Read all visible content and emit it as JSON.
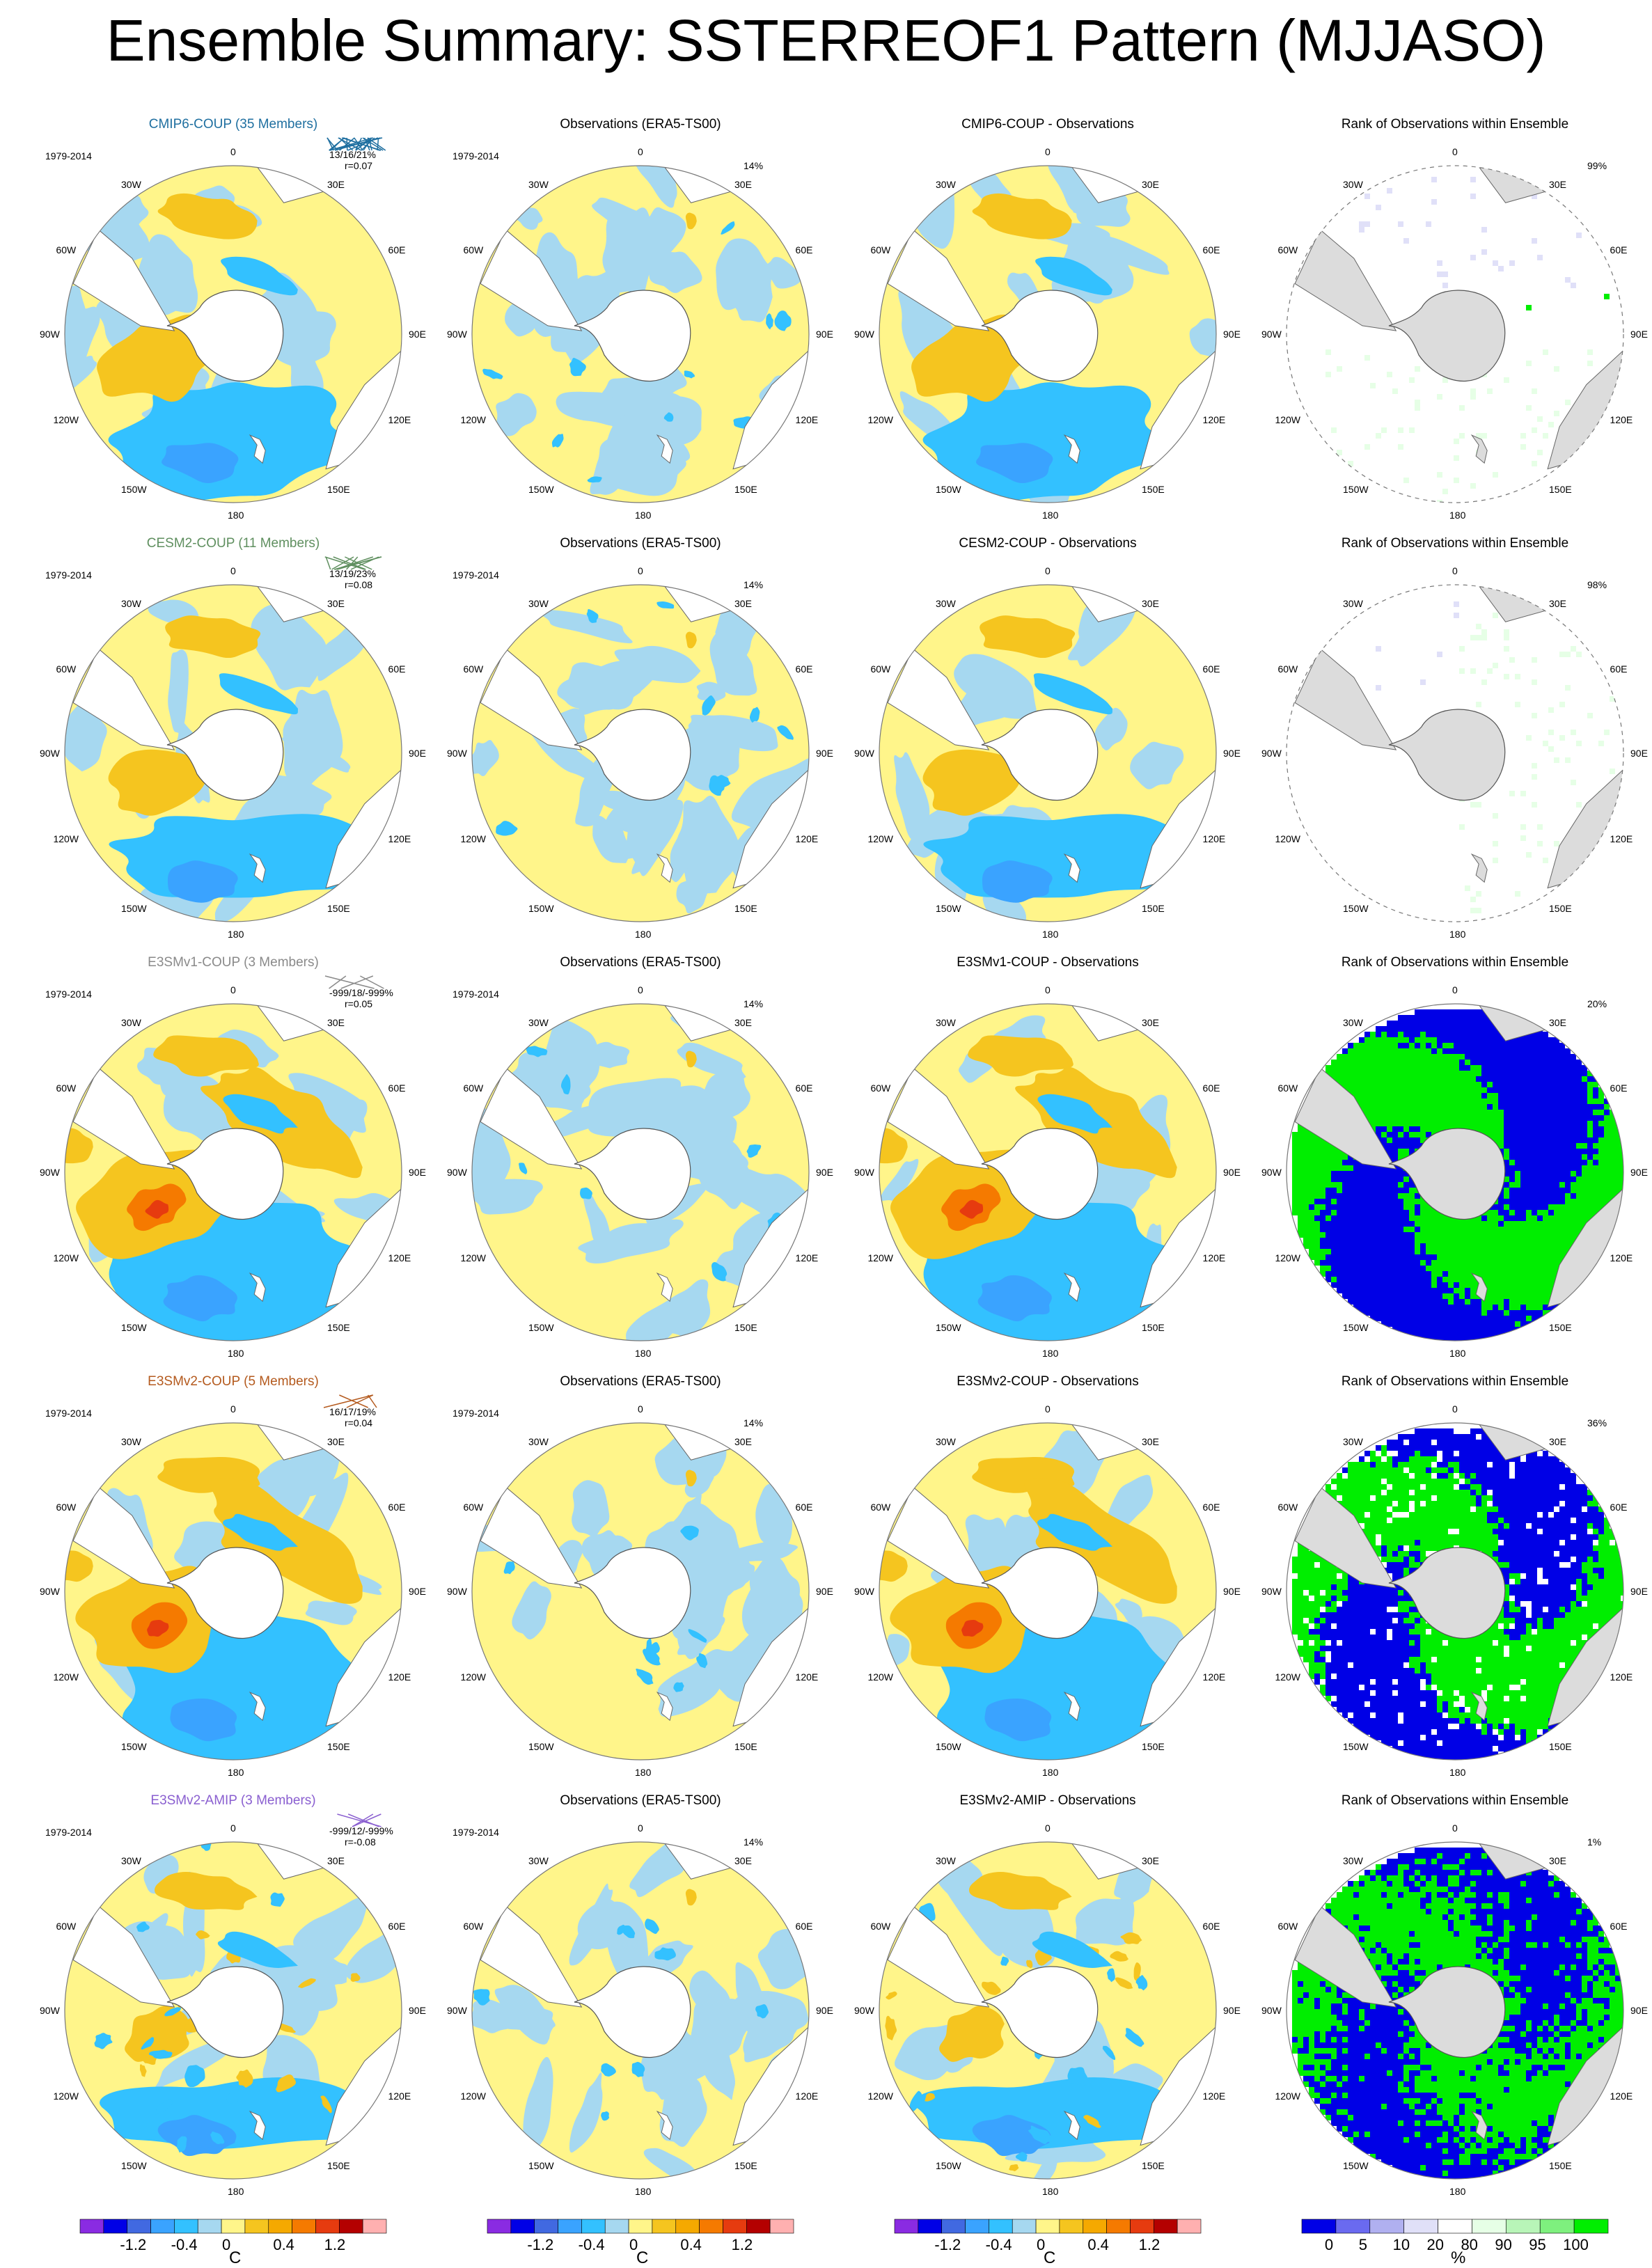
{
  "title": "Ensemble Summary: SSTERREOF1 Pattern (MJJASO)",
  "colors": {
    "diverging_palette": [
      "#8a2be2",
      "#0000e6",
      "#4169e1",
      "#3aa3ff",
      "#33c1ff",
      "#a6d8f0",
      "#fff58a",
      "#f5c51f",
      "#f5a900",
      "#f57a00",
      "#e63b0f",
      "#b40000",
      "#ffb0b0"
    ],
    "rank_palette": [
      "#0000e6",
      "#6a6af0",
      "#b0b0f0",
      "#e0e0f8",
      "#ffffff",
      "#e6ffe6",
      "#b8f5b8",
      "#7ef07e",
      "#00ee00"
    ],
    "land": "#dcdcdc",
    "cmip6_title": "#1f6fa0",
    "cesm2_title": "#5f8f5f",
    "e3smv1_title": "#8a8a8a",
    "e3smv2_title": "#b45a1e",
    "e3smv2amip_title": "#8a5fd0"
  },
  "rows": [
    {
      "model_title": "CMIP6-COUP (35 Members)",
      "title_color": "#1f6fa0",
      "period": "1979-2014",
      "stats": "13/16/21%",
      "corr": "r=0.07",
      "obs_title": "Observations (ERA5-TS00)",
      "obs_pct": "14%",
      "diff_title": "CMIP6-COUP - Observations",
      "rank_title": "Rank of Observations within Ensemble",
      "rank_pct": "99%",
      "rank_mode": "sparse"
    },
    {
      "model_title": "CESM2-COUP (11 Members)",
      "title_color": "#5f8f5f",
      "period": "1979-2014",
      "stats": "13/19/23%",
      "corr": "r=0.08",
      "obs_title": "Observations (ERA5-TS00)",
      "obs_pct": "14%",
      "diff_title": "CESM2-COUP - Observations",
      "rank_title": "Rank of Observations within Ensemble",
      "rank_pct": "98%",
      "rank_mode": "sparse2"
    },
    {
      "model_title": "E3SMv1-COUP (3 Members)",
      "title_color": "#8a8a8a",
      "period": "1979-2014",
      "stats": "-999/18/-999%",
      "corr": "r=0.05",
      "obs_title": "Observations (ERA5-TS00)",
      "obs_pct": "14%",
      "diff_title": "E3SMv1-COUP - Observations",
      "rank_title": "Rank of Observations within Ensemble",
      "rank_pct": "20%",
      "rank_mode": "dense"
    },
    {
      "model_title": "E3SMv2-COUP (5 Members)",
      "title_color": "#b45a1e",
      "period": "1979-2014",
      "stats": "16/17/19%",
      "corr": "r=0.04",
      "obs_title": "Observations (ERA5-TS00)",
      "obs_pct": "14%",
      "diff_title": "E3SMv2-COUP - Observations",
      "rank_title": "Rank of Observations within Ensemble",
      "rank_pct": "36%",
      "rank_mode": "dense2"
    },
    {
      "model_title": "E3SMv2-AMIP (3 Members)",
      "title_color": "#8a5fd0",
      "period": "1979-2014",
      "stats": "-999/12/-999%",
      "corr": "r=-0.08",
      "obs_title": "Observations (ERA5-TS00)",
      "obs_pct": "14%",
      "diff_title": "E3SMv2-AMIP - Observations",
      "rank_title": "Rank of Observations within Ensemble",
      "rank_pct": "1%",
      "rank_mode": "speckle"
    }
  ],
  "lon_labels": {
    "top": "0",
    "bottom": "180",
    "l1": "30W",
    "l2": "60W",
    "l3": "90W",
    "l4": "120W",
    "l5": "150W",
    "r1": "30E",
    "r2": "60E",
    "r3": "90E",
    "r4": "120E",
    "r5": "150E"
  },
  "chart_data": {
    "type": "heatmap",
    "title": "Ensemble Summary: SSTERREOF1 Pattern (MJJASO)",
    "projection": "south polar stereographic",
    "colorbar_anomaly": {
      "tick_labels": [
        "-1.2",
        "-0.4",
        "0",
        "0.4",
        "1.2"
      ],
      "unit": "C"
    },
    "colorbar_rank": {
      "tick_labels": [
        "0",
        "5",
        "10",
        "20",
        "80",
        "90",
        "95",
        "100"
      ],
      "unit": "%"
    }
  }
}
